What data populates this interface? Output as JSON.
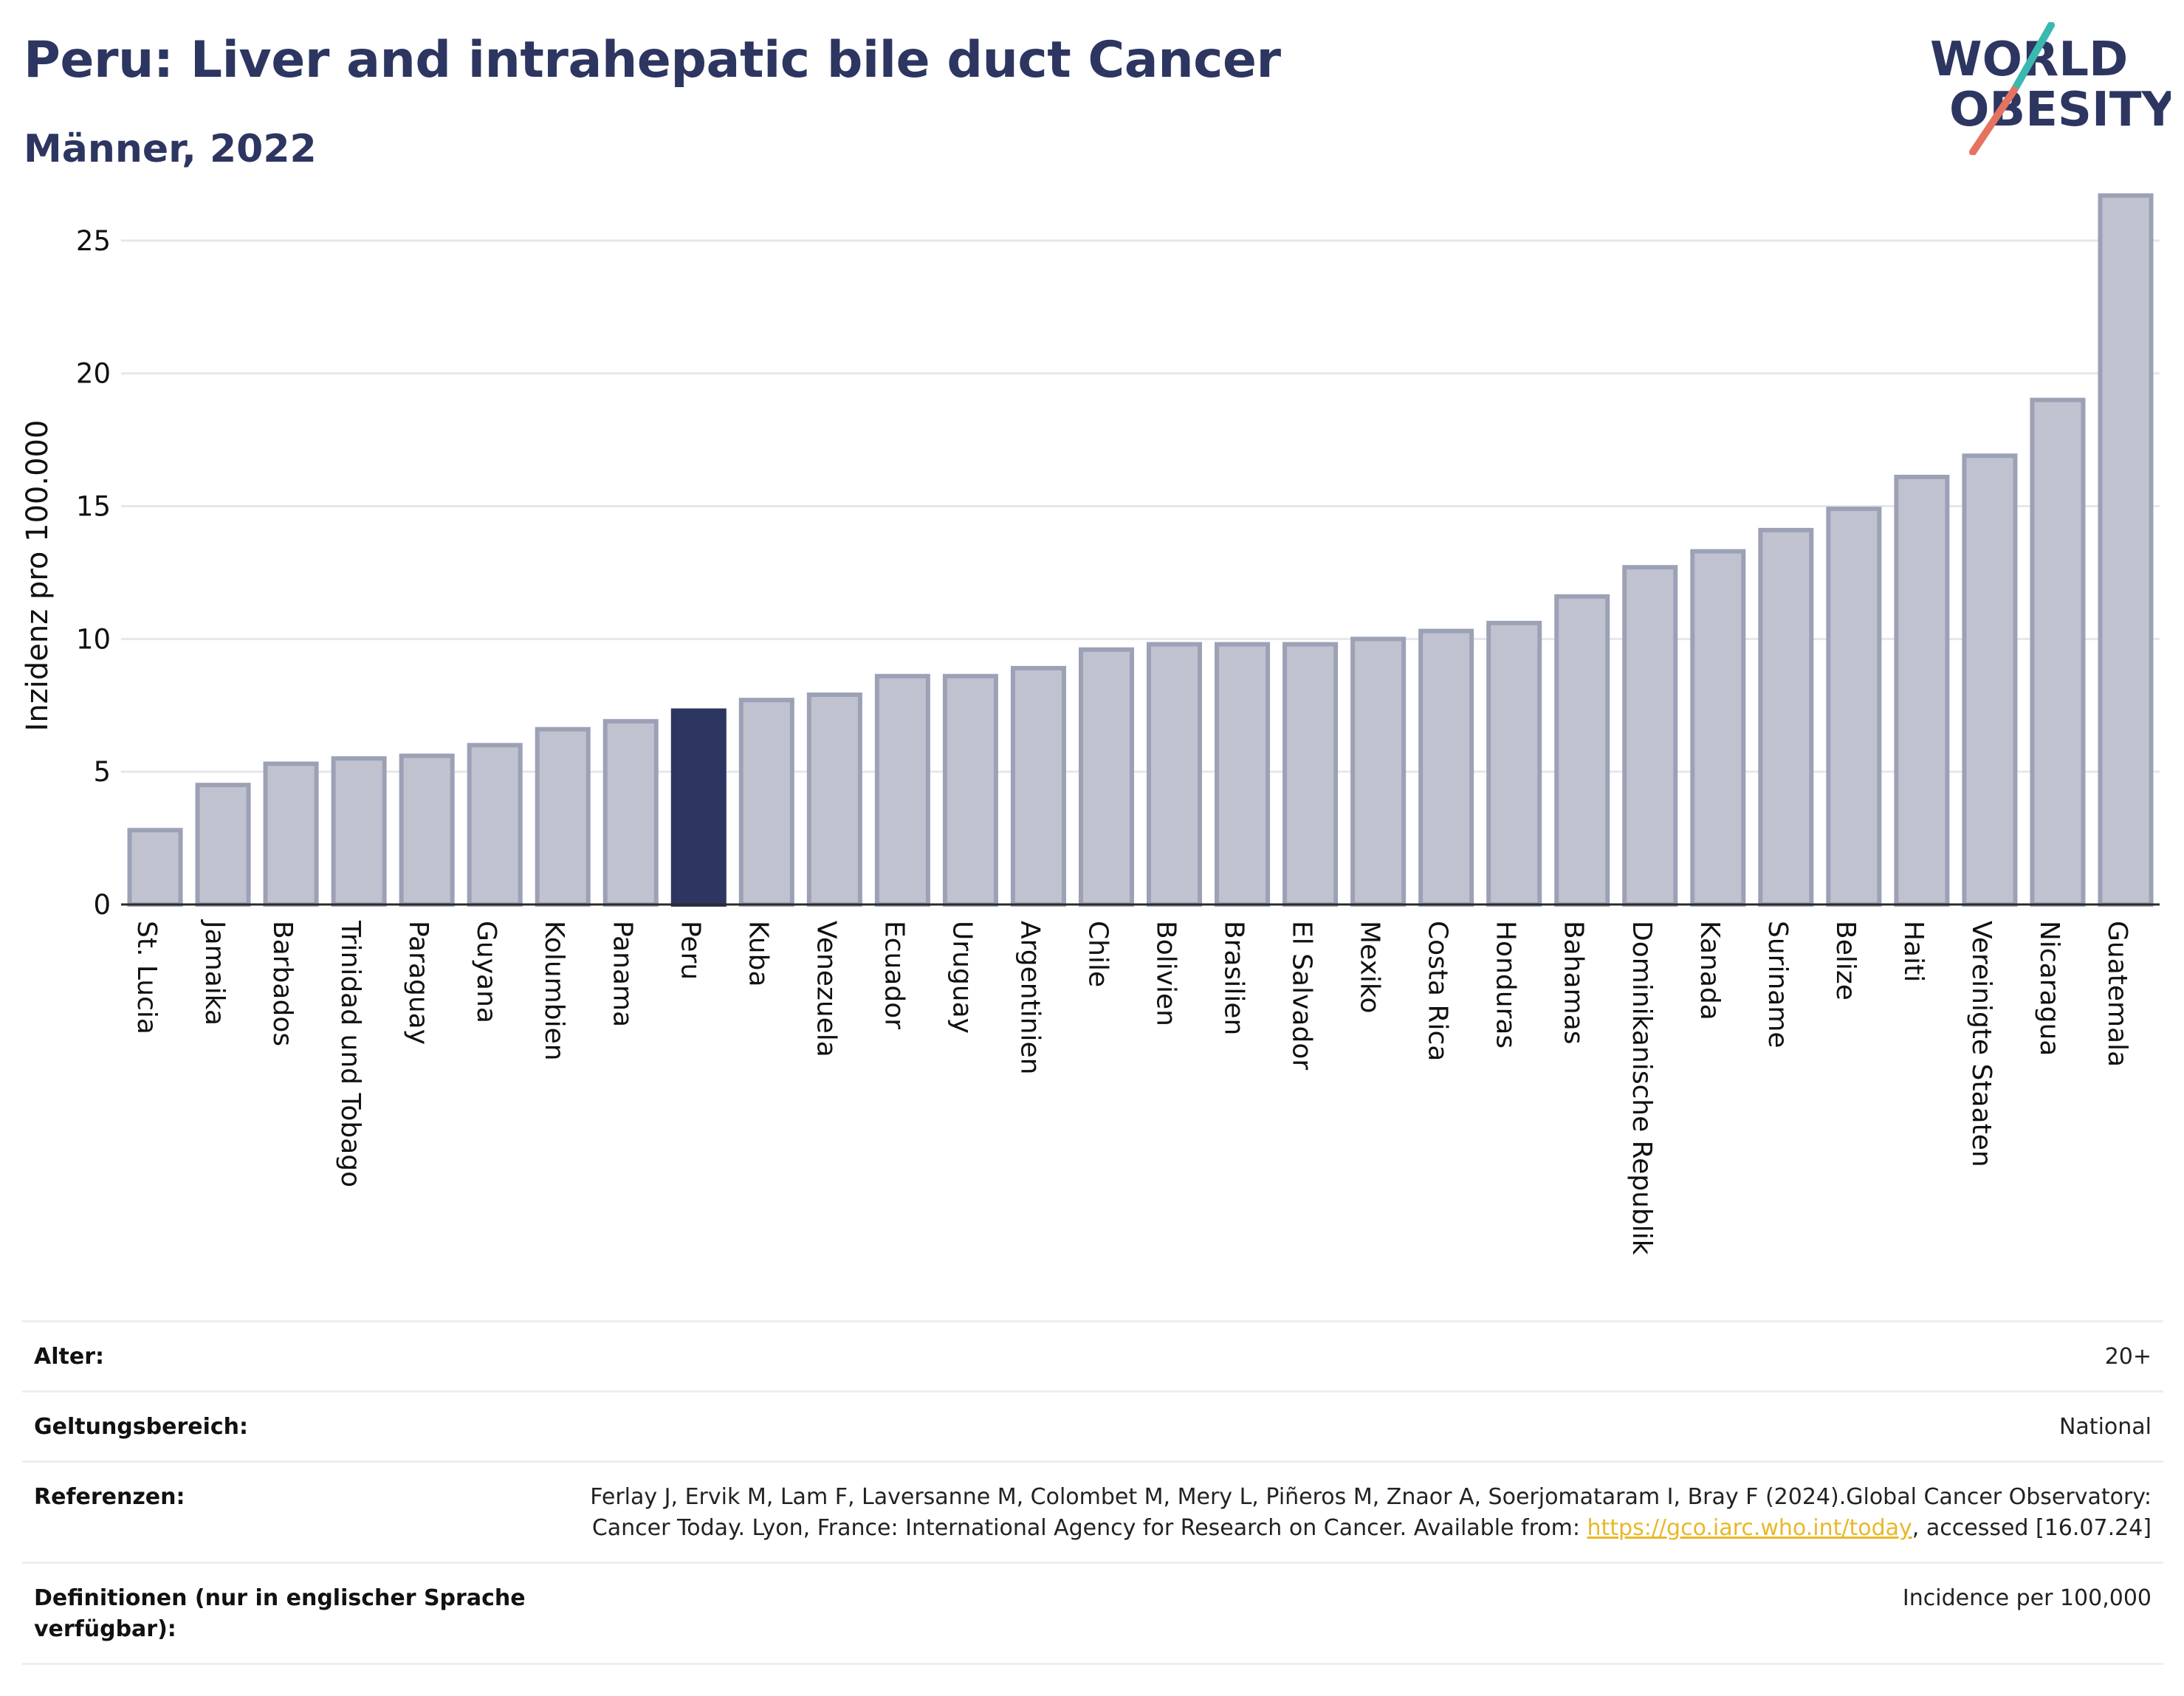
{
  "header": {
    "title": "Peru: Liver and intrahepatic bile duct Cancer",
    "subtitle": "Männer, 2022",
    "logo_line1": "WORLD",
    "logo_line2": "OBESITY"
  },
  "chart_data": {
    "type": "bar",
    "ylabel": "Inzidenz pro 100.000",
    "xlabel": "",
    "ylim": [
      0,
      27
    ],
    "yticks": [
      0,
      5,
      10,
      15,
      20,
      25
    ],
    "grid": true,
    "highlight": "Peru",
    "colors": {
      "bar": "#c0c3cf",
      "bar_edge": "#9da1b6",
      "highlight": "#2d3561"
    },
    "categories": [
      "St. Lucia",
      "Jamaika",
      "Barbados",
      "Trinidad und Tobago",
      "Paraguay",
      "Guyana",
      "Kolumbien",
      "Panama",
      "Peru",
      "Kuba",
      "Venezuela",
      "Ecuador",
      "Uruguay",
      "Argentinien",
      "Chile",
      "Bolivien",
      "Brasilien",
      "El Salvador",
      "Mexiko",
      "Costa Rica",
      "Honduras",
      "Bahamas",
      "Dominikanische Republik",
      "Kanada",
      "Suriname",
      "Belize",
      "Haiti",
      "Vereinigte Staaten",
      "Nicaragua",
      "Guatemala"
    ],
    "values": [
      2.8,
      4.5,
      5.3,
      5.5,
      5.6,
      6.0,
      6.6,
      6.9,
      7.3,
      7.7,
      7.9,
      8.6,
      8.6,
      8.9,
      9.6,
      9.8,
      9.8,
      9.8,
      10.0,
      10.3,
      10.6,
      11.6,
      12.7,
      13.3,
      14.1,
      14.9,
      16.1,
      16.9,
      19.0,
      26.7
    ]
  },
  "meta": {
    "rows": [
      {
        "key": "Alter:",
        "value": "20+"
      },
      {
        "key": "Geltungsbereich:",
        "value": "National"
      },
      {
        "key": "Referenzen:",
        "value_pre": "Ferlay J, Ervik M, Lam F, Laversanne M, Colombet M, Mery L, Piñeros M, Znaor A, Soerjomataram I, Bray F (2024).Global Cancer Observatory: Cancer Today. Lyon, France: International Agency for Research on Cancer. Available from: ",
        "link": "https://gco.iarc.who.int/today",
        "value_post": ", accessed [16.07.24]"
      },
      {
        "key": "Definitionen (nur in englischer Sprache verfügbar):",
        "value": "Incidence per 100,000"
      }
    ]
  }
}
